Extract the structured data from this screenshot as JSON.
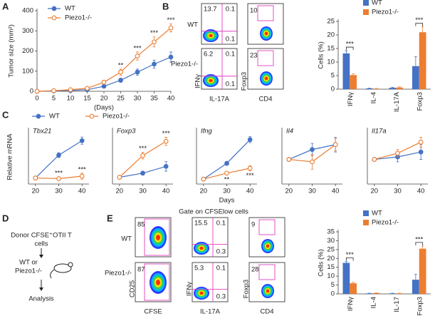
{
  "panel_labels": [
    "A",
    "B",
    "C",
    "D",
    "E"
  ],
  "chart_data": [
    {
      "type": "line",
      "xlabel": "(Days)",
      "ylabel": "Tumor size (mm²)",
      "x": [
        0,
        5,
        10,
        15,
        20,
        25,
        30,
        35,
        40
      ],
      "xlim": [
        0,
        40
      ],
      "xticks": [
        0,
        5,
        10,
        15,
        20,
        25,
        30,
        35,
        40
      ],
      "ylim": [
        0,
        400
      ],
      "yticks": [
        0,
        100,
        200,
        300,
        400
      ],
      "legend": "top-left",
      "series": [
        {
          "name": "WT",
          "color": "#4472c4",
          "marker": "filled",
          "values": [
            0,
            2,
            4,
            8,
            25,
            55,
            95,
            135,
            170
          ],
          "errors": [
            0,
            1,
            2,
            3,
            6,
            10,
            15,
            20,
            25
          ]
        },
        {
          "name": "Piezo1-/-",
          "color": "#ed7d31",
          "marker": "open",
          "values": [
            0,
            3,
            8,
            15,
            45,
            95,
            175,
            245,
            315
          ],
          "errors": [
            0,
            2,
            3,
            5,
            10,
            15,
            20,
            25,
            20
          ]
        }
      ],
      "annotations": [
        {
          "x": 25,
          "text": "**"
        },
        {
          "x": 30,
          "text": "***"
        },
        {
          "x": 35,
          "text": "***"
        },
        {
          "x": 40,
          "text": "***"
        }
      ]
    },
    {
      "type": "bar",
      "ylabel": "Cells (%)",
      "categories": [
        "IFNγ",
        "IL-4",
        "IL-17A",
        "Foxp3"
      ],
      "ylim": [
        0,
        25
      ],
      "yticks": [
        0,
        5,
        10,
        15,
        20,
        25
      ],
      "legend": "above",
      "series": [
        {
          "name": "WT",
          "color": "#4472c4",
          "values": [
            13.2,
            0.3,
            0.5,
            8.5
          ],
          "errors": [
            1,
            0.1,
            0.2,
            3.5
          ]
        },
        {
          "name": "Piezo1-/-",
          "color": "#ed7d31",
          "values": [
            5.2,
            0.2,
            0.6,
            21
          ],
          "errors": [
            0.5,
            0.1,
            0.2,
            2
          ]
        }
      ],
      "annotations": [
        {
          "category": "IFNγ",
          "text": "***"
        },
        {
          "category": "Foxp3",
          "text": "***"
        }
      ]
    },
    {
      "type": "line",
      "title": "Tbx21",
      "ylabel": "Relative mRNA",
      "x": [
        20,
        30,
        40
      ],
      "xlim": [
        17,
        43
      ],
      "xticks": [
        20,
        30,
        40
      ],
      "ylim": [
        0,
        9
      ],
      "legend": "above",
      "series": [
        {
          "name": "WT",
          "color": "#4472c4",
          "marker": "filled",
          "values": [
            1,
            4.8,
            7.2
          ],
          "errors": [
            0,
            0.4,
            0.6
          ]
        },
        {
          "name": "Piezo1-/-",
          "color": "#ed7d31",
          "marker": "open",
          "values": [
            1,
            0.9,
            1.3
          ],
          "errors": [
            0,
            0.3,
            0.5
          ]
        }
      ],
      "annotation_side": "between",
      "annotations": [
        {
          "x": 30,
          "text": "***"
        },
        {
          "x": 40,
          "text": "***"
        }
      ]
    },
    {
      "type": "line",
      "title": "Foxp3",
      "x": [
        20,
        30,
        40
      ],
      "xlim": [
        17,
        43
      ],
      "xticks": [
        20,
        30,
        40
      ],
      "ylim": [
        0,
        8
      ],
      "series": [
        {
          "color": "#4472c4",
          "marker": "filled",
          "values": [
            1,
            1.6,
            2.6
          ],
          "errors": [
            0,
            0.3,
            0.7
          ]
        },
        {
          "color": "#ed7d31",
          "marker": "open",
          "values": [
            1,
            4.2,
            6.3
          ],
          "errors": [
            0,
            0.5,
            0.6
          ]
        }
      ],
      "annotations": [
        {
          "x": 30,
          "text": "***"
        },
        {
          "x": 40,
          "text": "***"
        }
      ]
    },
    {
      "type": "line",
      "title": "Ifng",
      "xlabel": "Days",
      "x": [
        20,
        30,
        40
      ],
      "xlim": [
        17,
        43
      ],
      "xticks": [
        20,
        30,
        40
      ],
      "ylim": [
        0,
        11
      ],
      "series": [
        {
          "color": "#4472c4",
          "marker": "filled",
          "values": [
            1,
            4.2,
            9
          ],
          "errors": [
            0,
            0.4,
            0.6
          ]
        },
        {
          "color": "#ed7d31",
          "marker": "open",
          "values": [
            1,
            2.2,
            3.2
          ],
          "errors": [
            0,
            0.3,
            0.5
          ]
        }
      ],
      "annotation_side": "below",
      "annotations": [
        {
          "x": 30,
          "text": "**"
        },
        {
          "x": 40,
          "text": "***"
        }
      ]
    },
    {
      "type": "line",
      "title": "Il4",
      "x": [
        20,
        30,
        40
      ],
      "xlim": [
        17,
        43
      ],
      "xticks": [
        20,
        30,
        40
      ],
      "ylim": [
        0,
        2.2
      ],
      "series": [
        {
          "color": "#4472c4",
          "marker": "filled",
          "values": [
            1,
            1.4,
            1.6
          ],
          "errors": [
            0,
            0.25,
            0.3
          ]
        },
        {
          "color": "#ed7d31",
          "marker": "open",
          "values": [
            1,
            0.9,
            1.6
          ],
          "errors": [
            0,
            0.3,
            0.25
          ]
        }
      ]
    },
    {
      "type": "line",
      "title": "Il17a",
      "x": [
        20,
        30,
        40
      ],
      "xlim": [
        17,
        43
      ],
      "xticks": [
        20,
        30,
        40
      ],
      "ylim": [
        0,
        2.2
      ],
      "series": [
        {
          "color": "#4472c4",
          "marker": "filled",
          "values": [
            1,
            1.1,
            1.3
          ],
          "errors": [
            0,
            0.2,
            0.3
          ]
        },
        {
          "color": "#ed7d31",
          "marker": "open",
          "values": [
            1,
            1.25,
            1.7
          ],
          "errors": [
            0,
            0.15,
            0.2
          ]
        }
      ]
    },
    {
      "type": "bar",
      "ylabel": "Cells (%)",
      "categories": [
        "IFNγ",
        "IL-4",
        "IL-17",
        "Foxp3"
      ],
      "ylim": [
        0,
        35
      ],
      "yticks": [
        0,
        5,
        10,
        15,
        20,
        25,
        30,
        35
      ],
      "legend": "above",
      "series": [
        {
          "name": "WT",
          "color": "#4472c4",
          "values": [
            17.5,
            0.3,
            0.3,
            8
          ],
          "errors": [
            0.8,
            0.1,
            0.1,
            3
          ]
        },
        {
          "name": "Piezo1-/-",
          "color": "#ed7d31",
          "values": [
            6,
            0.5,
            0.3,
            25.5
          ],
          "errors": [
            0.6,
            0.1,
            0.1,
            1.5
          ]
        }
      ],
      "annotations": [
        {
          "category": "IFNγ",
          "text": "***"
        },
        {
          "category": "Foxp3",
          "text": "***"
        }
      ]
    }
  ],
  "flow_b": {
    "row_labels": [
      "WT",
      "Piezo1-/-"
    ],
    "x_labels": [
      "IL-17A",
      "CD4"
    ],
    "y_labels": [
      "IFNγ",
      "Foxp3"
    ],
    "quadrants": [
      [
        "13.7",
        "0.1",
        "0.1"
      ],
      [
        "6.2",
        "0.1",
        "0.1"
      ]
    ],
    "gates": [
      [
        "10"
      ],
      [
        "23"
      ]
    ]
  },
  "flow_e": {
    "title": "Gate on CFSElow cells",
    "row_labels": [
      "WT",
      "Piezo1-/-"
    ],
    "x_labels": [
      "CFSE",
      "IL-17A",
      "CD4"
    ],
    "y_labels": [
      "CD25",
      "IFNγ",
      "Foxp3"
    ],
    "cfse": [
      "85",
      "87"
    ],
    "quadrants": [
      [
        "15.5",
        "0.1",
        "0.3"
      ],
      [
        "5.3",
        "0.1",
        "0.3"
      ]
    ],
    "gates": [
      [
        "9"
      ],
      [
        "28"
      ]
    ]
  },
  "diagram": {
    "donor": [
      "Donor CFSE⁺OTII  T",
      "cells"
    ],
    "recipient": [
      "WT or",
      "Piezo1-/-"
    ],
    "outcome": "Analysis"
  }
}
